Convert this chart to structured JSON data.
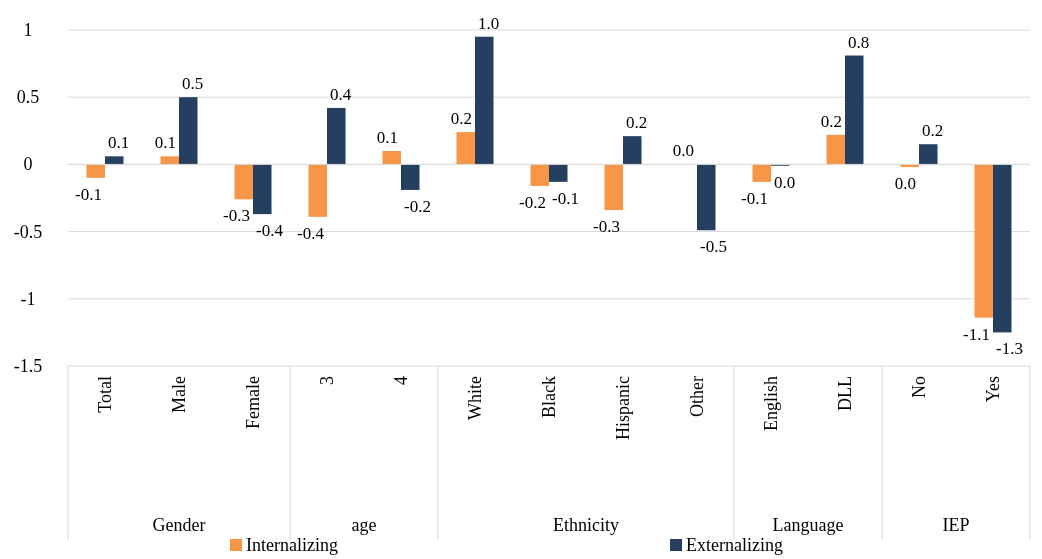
{
  "chart_data": {
    "type": "bar",
    "categories": [
      "Total",
      "Male",
      "Female",
      "3",
      "4",
      "White",
      "Black",
      "Hispanic",
      "Other",
      "English",
      "DLL",
      "No",
      "Yes"
    ],
    "series": [
      {
        "name": "Internalizing",
        "color": "#f79646",
        "values": [
          -0.1,
          0.06,
          -0.26,
          -0.39,
          0.1,
          0.24,
          -0.16,
          -0.34,
          0,
          -0.13,
          0.22,
          -0.02,
          -1.14
        ],
        "value_labels": [
          "-0.1",
          "0.1",
          "-0.3",
          "-0.4",
          "0.1",
          "0.2",
          "-0.2",
          "-0.3",
          "0.0",
          "-0.1",
          "0.2",
          "0.0",
          "-1.1"
        ]
      },
      {
        "name": "Externalizing",
        "color": "#243f60",
        "values": [
          0.06,
          0.5,
          -0.37,
          0.42,
          -0.19,
          0.95,
          -0.13,
          0.21,
          -0.49,
          -0.01,
          0.81,
          0.15,
          -1.25
        ],
        "value_labels": [
          "0.1",
          "0.5",
          "-0.4",
          "0.4",
          "-0.2",
          "1.0",
          "-0.1",
          "0.2",
          "-0.5",
          "0.0",
          "0.8",
          "0.2",
          "-1.3"
        ]
      }
    ],
    "annotations": [
      "Gender",
      "age",
      "Ethnicity",
      "Language",
      "IEP"
    ],
    "ylim": [
      -1.5,
      1
    ],
    "yticks": [
      -1.5,
      -1,
      -0.5,
      0,
      0.5,
      1
    ],
    "grid": "y",
    "legend": "bottom"
  }
}
